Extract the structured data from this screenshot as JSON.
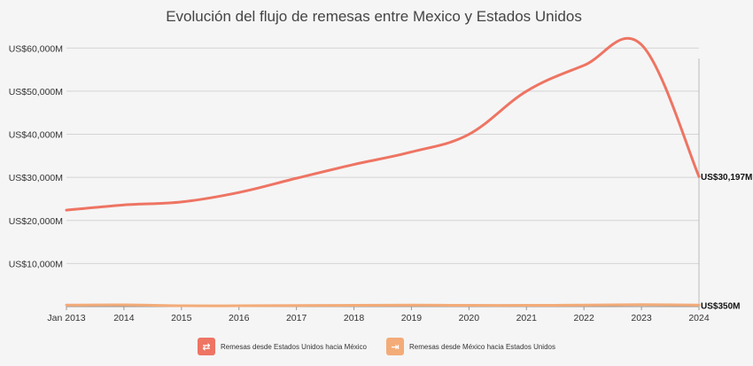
{
  "chart_data": {
    "type": "line",
    "title": "Evolución del flujo de remesas entre Mexico y Estados Unidos",
    "x": [
      "Jan 2013",
      "2014",
      "2015",
      "2016",
      "2017",
      "2018",
      "2019",
      "2020",
      "2021",
      "2022",
      "2023",
      "2024"
    ],
    "ylim": [
      0,
      65000
    ],
    "yticks": [
      10000,
      20000,
      30000,
      40000,
      50000,
      60000
    ],
    "ytick_labels": [
      "US$10,000M",
      "US$20,000M",
      "US$30,000M",
      "US$40,000M",
      "US$50,000M",
      "US$60,000M"
    ],
    "series": [
      {
        "name": "Remesas desde Estados Unidos hacia México",
        "color": "#ee7463",
        "icon": "money-exchange-icon",
        "values": [
          22400,
          23600,
          24300,
          26500,
          29800,
          33000,
          35900,
          40000,
          50000,
          56000,
          60800,
          30197
        ],
        "end_label": "US$30,197M"
      },
      {
        "name": "Remesas desde México hacia Estados Unidos",
        "color": "#f3ab78",
        "icon": "money-transfer-icon",
        "values": [
          350,
          400,
          200,
          200,
          250,
          300,
          350,
          300,
          300,
          350,
          450,
          350
        ],
        "end_label": "US$350M"
      }
    ],
    "grid": true,
    "legend": "bottom"
  }
}
